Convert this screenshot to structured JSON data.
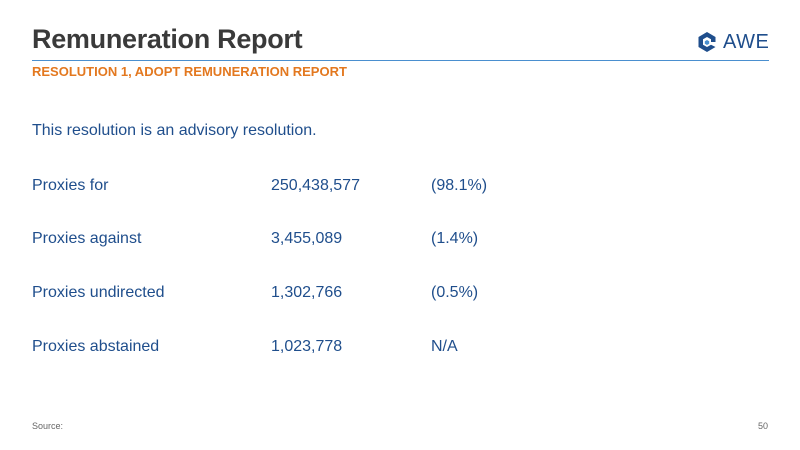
{
  "header": {
    "title": "Remuneration Report",
    "subtitle": "RESOLUTION 1, ADOPT REMUNERATION REPORT"
  },
  "logo": {
    "text": "AWE",
    "icon": "awe-logo-icon"
  },
  "intro": "This resolution is an advisory resolution.",
  "proxies": [
    {
      "label": "Proxies for",
      "value": "250,438,577",
      "percent": "(98.1%)"
    },
    {
      "label": "Proxies against",
      "value": "3,455,089",
      "percent": "(1.4%)"
    },
    {
      "label": "Proxies undirected",
      "value": "1,302,766",
      "percent": "(0.5%)"
    },
    {
      "label": "Proxies abstained",
      "value": "1,023,778",
      "percent": "N/A"
    }
  ],
  "footer": {
    "source": "Source:",
    "page_number": "50"
  },
  "colors": {
    "title": "#3a3a3a",
    "subtitle": "#e3781f",
    "body_text": "#1f4e8c",
    "rule": "#4a8fcf",
    "logo_blue": "#1f4e8c",
    "logo_light": "#4a8fcf"
  }
}
